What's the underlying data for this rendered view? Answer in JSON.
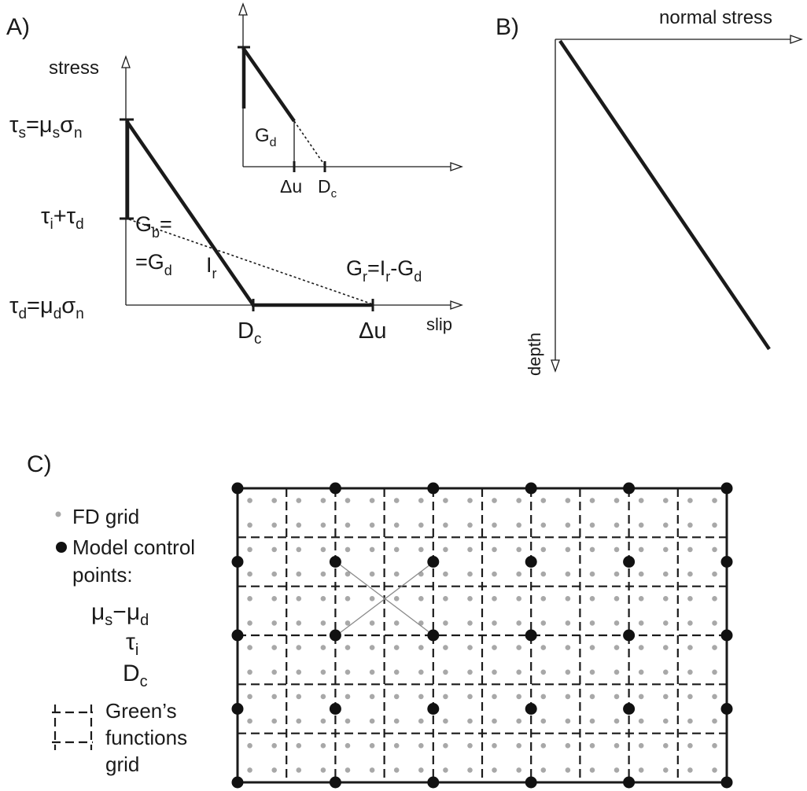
{
  "panel_a": {
    "label": "A)",
    "y_axis_label": "stress",
    "x_axis_label": "slip",
    "ts_tau": "τ",
    "ts_sub": "s",
    "ts_eq": "=μ",
    "ts_mu_sub": "s",
    "ts_sigma": "σ",
    "ts_sigma_sub": "n",
    "ti_tau": "τ",
    "ti_sub": "i",
    "ti_plus": "+τ",
    "ti_d_sub": "d",
    "td_tau": "τ",
    "td_sub": "d",
    "td_eq": "=μ",
    "td_mu_sub": "d",
    "td_sigma": "σ",
    "td_sigma_sub": "n",
    "gb_main": "G",
    "gb_sub": "b",
    "gb_eq": "=",
    "gd_main": "=G",
    "gd_sub": "d",
    "ir_main": "I",
    "ir_sub": "r",
    "gr_main": "G",
    "gr_sub": "r",
    "gr_eq": "=I",
    "gr_r_sub": "r",
    "gr_minus": "-G",
    "gr_d_sub": "d",
    "dc_main": "D",
    "dc_sub": "c",
    "du_label": "Δu",
    "inset": {
      "gd_main": "G",
      "gd_sub": "d",
      "du_label": "Δu",
      "dc_main": "D",
      "dc_sub": "c"
    }
  },
  "panel_b": {
    "label": "B)",
    "x_axis_label": "normal stress",
    "y_axis_label": "depth"
  },
  "panel_c": {
    "label": "C)",
    "legend_fd": "FD grid",
    "legend_cp_line1": "Model control",
    "legend_cp_line2": "points:",
    "param1_mu_a": "μ",
    "param1_sub_a": "s",
    "param1_minus": "−μ",
    "param1_sub_b": "d",
    "param2_tau": "τ",
    "param2_sub": "i",
    "param3_main": "D",
    "param3_sub": "c",
    "legend_gf_line1": "Green’s",
    "legend_gf_line2": "functions",
    "legend_gf_line3": "grid"
  },
  "colors": {
    "ink": "#1a1a1a",
    "fd_grid_dot": "#a8a8a8",
    "control_point": "#111111",
    "stencil_line": "#8a8a8a"
  }
}
